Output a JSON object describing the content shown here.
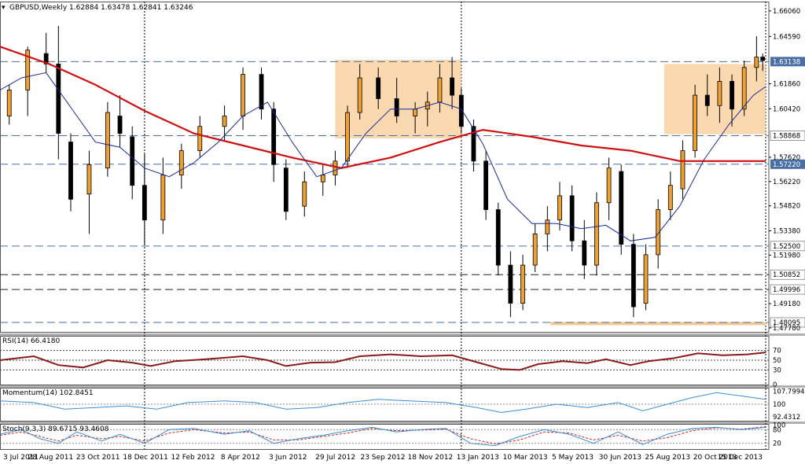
{
  "chart_data": {
    "type": "candlestick",
    "symbol_header": "GBPUSD,Weekly",
    "ohlc_header": "1.62884 1.63478 1.62841 1.63246",
    "y_ticks": [
      "1.66060",
      "1.64590",
      "1.63138",
      "1.61860",
      "1.60420",
      "1.58868",
      "1.57620",
      "1.57220",
      "1.56220",
      "1.54820",
      "1.53380",
      "1.52500",
      "1.51980",
      "1.50852",
      "1.49996",
      "1.49180",
      "1.48095",
      "1.47780"
    ],
    "x_labels": [
      "3 Jul 2011",
      "28 Aug 2011",
      "23 Oct 2011",
      "18 Dec 2011",
      "12 Feb 2012",
      "8 Apr 2012",
      "3 Jun 2012",
      "29 Jul 2012",
      "23 Sep 2012",
      "18 Nov 2012",
      "13 Jan 2013",
      "10 Mar 2013",
      "5 May 2013",
      "30 Jun 2013",
      "25 Aug 2013",
      "20 Oct 2013",
      "15 Dec 2013"
    ],
    "horizontal_levels": [
      {
        "value": 1.63138,
        "label": "1.63138",
        "style": "dashed",
        "highlight": true
      },
      {
        "value": 1.58868,
        "label": "1.58868",
        "style": "dashed",
        "highlight": false
      },
      {
        "value": 1.5722,
        "label": "1.57220",
        "style": "dashed",
        "highlight": true
      },
      {
        "value": 1.525,
        "label": "1.52500",
        "style": "dashed",
        "highlight": false
      },
      {
        "value": 1.50852,
        "label": "1.50852",
        "style": "dashed-black",
        "highlight": false
      },
      {
        "value": 1.49996,
        "label": "1.49996",
        "style": "dashed-black",
        "highlight": false
      },
      {
        "value": 1.48095,
        "label": "1.48095",
        "style": "dashed",
        "highlight": false
      }
    ],
    "ranges": [
      {
        "x_start": 2012.58,
        "x_end": 2012.99,
        "y_low": 1.587,
        "y_high": 1.6325
      },
      {
        "x_start": 2013.65,
        "x_end": 2013.98,
        "y_low": 1.5895,
        "y_high": 1.63
      }
    ],
    "bottom_strip": {
      "x_start": 2013.28,
      "x_end": 2013.98,
      "value": 1.4803
    },
    "ylim": [
      1.4755,
      1.666
    ],
    "xlim": [
      2011.49,
      2013.99
    ],
    "vertical_markers": [
      2011.96,
      2012.99
    ],
    "candles_sampled": [
      [
        2011.52,
        1.6,
        1.618,
        1.595,
        1.615
      ],
      [
        2011.58,
        1.615,
        1.64,
        1.6,
        1.638
      ],
      [
        2011.64,
        1.636,
        1.648,
        1.625,
        1.63
      ],
      [
        2011.68,
        1.63,
        1.652,
        1.575,
        1.59
      ],
      [
        2011.72,
        1.585,
        1.59,
        1.545,
        1.552
      ],
      [
        2011.78,
        1.555,
        1.58,
        1.532,
        1.572
      ],
      [
        2011.84,
        1.57,
        1.608,
        1.565,
        1.602
      ],
      [
        2011.88,
        1.6,
        1.612,
        1.582,
        1.59
      ],
      [
        2011.92,
        1.588,
        1.594,
        1.552,
        1.56
      ],
      [
        2011.96,
        1.56,
        1.578,
        1.526,
        1.54
      ],
      [
        2012.02,
        1.54,
        1.576,
        1.532,
        1.566
      ],
      [
        2012.08,
        1.566,
        1.584,
        1.558,
        1.58
      ],
      [
        2012.14,
        1.58,
        1.6,
        1.576,
        1.594
      ],
      [
        2012.22,
        1.594,
        1.606,
        1.586,
        1.6
      ],
      [
        2012.28,
        1.6,
        1.628,
        1.592,
        1.624
      ],
      [
        2012.34,
        1.624,
        1.628,
        1.598,
        1.604
      ],
      [
        2012.38,
        1.604,
        1.608,
        1.562,
        1.572
      ],
      [
        2012.42,
        1.57,
        1.575,
        1.54,
        1.545
      ],
      [
        2012.48,
        1.548,
        1.568,
        1.542,
        1.562
      ],
      [
        2012.54,
        1.562,
        1.572,
        1.554,
        1.566
      ],
      [
        2012.58,
        1.566,
        1.58,
        1.56,
        1.574
      ],
      [
        2012.62,
        1.574,
        1.606,
        1.57,
        1.602
      ],
      [
        2012.66,
        1.602,
        1.63,
        1.598,
        1.622
      ],
      [
        2012.72,
        1.622,
        1.628,
        1.604,
        1.61
      ],
      [
        2012.78,
        1.61,
        1.622,
        1.596,
        1.6
      ],
      [
        2012.84,
        1.6,
        1.608,
        1.59,
        1.604
      ],
      [
        2012.88,
        1.604,
        1.614,
        1.594,
        1.608
      ],
      [
        2012.92,
        1.608,
        1.63,
        1.602,
        1.622
      ],
      [
        2012.96,
        1.622,
        1.634,
        1.604,
        1.612
      ],
      [
        2012.99,
        1.612,
        1.616,
        1.59,
        1.594
      ],
      [
        2013.03,
        1.594,
        1.598,
        1.568,
        1.574
      ],
      [
        2013.07,
        1.574,
        1.58,
        1.54,
        1.546
      ],
      [
        2013.11,
        1.546,
        1.55,
        1.508,
        1.514
      ],
      [
        2013.15,
        1.514,
        1.522,
        1.484,
        1.492
      ],
      [
        2013.19,
        1.492,
        1.52,
        1.488,
        1.514
      ],
      [
        2013.23,
        1.514,
        1.538,
        1.51,
        1.532
      ],
      [
        2013.27,
        1.532,
        1.548,
        1.522,
        1.54
      ],
      [
        2013.31,
        1.54,
        1.562,
        1.534,
        1.554
      ],
      [
        2013.35,
        1.554,
        1.56,
        1.522,
        1.528
      ],
      [
        2013.39,
        1.528,
        1.54,
        1.506,
        1.514
      ],
      [
        2013.43,
        1.514,
        1.556,
        1.508,
        1.55
      ],
      [
        2013.47,
        1.55,
        1.576,
        1.54,
        1.57
      ],
      [
        2013.51,
        1.568,
        1.572,
        1.52,
        1.526
      ],
      [
        2013.55,
        1.526,
        1.532,
        1.484,
        1.49
      ],
      [
        2013.59,
        1.492,
        1.526,
        1.488,
        1.52
      ],
      [
        2013.63,
        1.52,
        1.552,
        1.512,
        1.546
      ],
      [
        2013.67,
        1.546,
        1.568,
        1.54,
        1.56
      ],
      [
        2013.71,
        1.558,
        1.586,
        1.552,
        1.58
      ],
      [
        2013.75,
        1.58,
        1.618,
        1.576,
        1.612
      ],
      [
        2013.79,
        1.612,
        1.624,
        1.6,
        1.606
      ],
      [
        2013.83,
        1.606,
        1.628,
        1.596,
        1.62
      ],
      [
        2013.87,
        1.62,
        1.624,
        1.594,
        1.604
      ],
      [
        2013.91,
        1.604,
        1.632,
        1.6,
        1.628
      ],
      [
        2013.95,
        1.628,
        1.646,
        1.62,
        1.634
      ],
      [
        2013.97,
        1.634,
        1.636,
        1.626,
        1.632
      ]
    ],
    "ma_short": [
      [
        2011.49,
        1.615
      ],
      [
        2011.56,
        1.622
      ],
      [
        2011.64,
        1.625
      ],
      [
        2011.72,
        1.605
      ],
      [
        2011.8,
        1.585
      ],
      [
        2011.88,
        1.582
      ],
      [
        2011.96,
        1.57
      ],
      [
        2012.04,
        1.565
      ],
      [
        2012.12,
        1.573
      ],
      [
        2012.2,
        1.585
      ],
      [
        2012.28,
        1.6
      ],
      [
        2012.36,
        1.608
      ],
      [
        2012.44,
        1.585
      ],
      [
        2012.52,
        1.565
      ],
      [
        2012.6,
        1.57
      ],
      [
        2012.68,
        1.59
      ],
      [
        2012.76,
        1.604
      ],
      [
        2012.84,
        1.604
      ],
      [
        2012.92,
        1.608
      ],
      [
        2012.99,
        1.604
      ],
      [
        2013.06,
        1.584
      ],
      [
        2013.14,
        1.552
      ],
      [
        2013.22,
        1.538
      ],
      [
        2013.3,
        1.538
      ],
      [
        2013.38,
        1.535
      ],
      [
        2013.46,
        1.537
      ],
      [
        2013.54,
        1.528
      ],
      [
        2013.62,
        1.53
      ],
      [
        2013.7,
        1.548
      ],
      [
        2013.78,
        1.575
      ],
      [
        2013.86,
        1.595
      ],
      [
        2013.94,
        1.612
      ],
      [
        2013.98,
        1.617
      ]
    ],
    "ma_long": [
      [
        2011.49,
        1.64
      ],
      [
        2011.65,
        1.63
      ],
      [
        2011.8,
        1.618
      ],
      [
        2011.96,
        1.603
      ],
      [
        2012.12,
        1.59
      ],
      [
        2012.28,
        1.583
      ],
      [
        2012.44,
        1.576
      ],
      [
        2012.6,
        1.57
      ],
      [
        2012.76,
        1.576
      ],
      [
        2012.92,
        1.585
      ],
      [
        2013.06,
        1.592
      ],
      [
        2013.22,
        1.588
      ],
      [
        2013.38,
        1.583
      ],
      [
        2013.54,
        1.58
      ],
      [
        2013.7,
        1.574
      ],
      [
        2013.86,
        1.574
      ],
      [
        2013.98,
        1.574
      ]
    ],
    "rsi_header": "RSI(14) 66.4180",
    "rsi_ticks": [
      "70",
      "50",
      "30",
      "0"
    ],
    "rsi": [
      [
        2011.49,
        50
      ],
      [
        2011.6,
        58
      ],
      [
        2011.68,
        40
      ],
      [
        2011.76,
        35
      ],
      [
        2011.84,
        50
      ],
      [
        2011.92,
        45
      ],
      [
        2011.98,
        38
      ],
      [
        2012.06,
        48
      ],
      [
        2012.16,
        52
      ],
      [
        2012.28,
        58
      ],
      [
        2012.36,
        50
      ],
      [
        2012.42,
        38
      ],
      [
        2012.5,
        45
      ],
      [
        2012.58,
        46
      ],
      [
        2012.66,
        58
      ],
      [
        2012.76,
        62
      ],
      [
        2012.86,
        58
      ],
      [
        2012.96,
        60
      ],
      [
        2013.04,
        46
      ],
      [
        2013.12,
        32
      ],
      [
        2013.18,
        30
      ],
      [
        2013.24,
        42
      ],
      [
        2013.32,
        48
      ],
      [
        2013.4,
        44
      ],
      [
        2013.46,
        52
      ],
      [
        2013.54,
        40
      ],
      [
        2013.6,
        48
      ],
      [
        2013.68,
        54
      ],
      [
        2013.76,
        64
      ],
      [
        2013.84,
        60
      ],
      [
        2013.92,
        62
      ],
      [
        2013.98,
        66
      ]
    ],
    "momentum_header": "Momentum(14) 102.8451",
    "momentum_ticks": [
      "107.7994",
      "100",
      "92.4312"
    ],
    "momentum": [
      [
        2011.49,
        102
      ],
      [
        2011.6,
        101
      ],
      [
        2011.7,
        97
      ],
      [
        2011.8,
        98
      ],
      [
        2011.9,
        99
      ],
      [
        2012.0,
        97
      ],
      [
        2012.1,
        101
      ],
      [
        2012.22,
        102
      ],
      [
        2012.32,
        101
      ],
      [
        2012.42,
        97
      ],
      [
        2012.52,
        98
      ],
      [
        2012.62,
        101
      ],
      [
        2012.72,
        103
      ],
      [
        2012.82,
        102
      ],
      [
        2012.94,
        101
      ],
      [
        2013.04,
        98
      ],
      [
        2013.12,
        95
      ],
      [
        2013.2,
        97
      ],
      [
        2013.3,
        100
      ],
      [
        2013.4,
        98
      ],
      [
        2013.5,
        101
      ],
      [
        2013.58,
        96
      ],
      [
        2013.66,
        100
      ],
      [
        2013.74,
        104
      ],
      [
        2013.82,
        107
      ],
      [
        2013.9,
        105
      ],
      [
        2013.98,
        103
      ]
    ],
    "stoch_header": "Stoch(9,3,3) 89.6715 93.4608",
    "stoch_ticks": [
      "100",
      "80",
      "20"
    ],
    "stoch_main": [
      [
        2011.49,
        60
      ],
      [
        2011.56,
        80
      ],
      [
        2011.62,
        40
      ],
      [
        2011.68,
        20
      ],
      [
        2011.74,
        70
      ],
      [
        2011.82,
        30
      ],
      [
        2011.88,
        60
      ],
      [
        2011.96,
        20
      ],
      [
        2012.04,
        80
      ],
      [
        2012.12,
        85
      ],
      [
        2012.22,
        60
      ],
      [
        2012.3,
        75
      ],
      [
        2012.38,
        20
      ],
      [
        2012.46,
        40
      ],
      [
        2012.54,
        55
      ],
      [
        2012.62,
        75
      ],
      [
        2012.7,
        90
      ],
      [
        2012.78,
        70
      ],
      [
        2012.86,
        80
      ],
      [
        2012.94,
        85
      ],
      [
        2013.02,
        20
      ],
      [
        2013.1,
        10
      ],
      [
        2013.18,
        50
      ],
      [
        2013.26,
        80
      ],
      [
        2013.34,
        60
      ],
      [
        2013.42,
        20
      ],
      [
        2013.5,
        70
      ],
      [
        2013.58,
        15
      ],
      [
        2013.66,
        60
      ],
      [
        2013.74,
        85
      ],
      [
        2013.82,
        90
      ],
      [
        2013.9,
        80
      ],
      [
        2013.98,
        90
      ]
    ],
    "stoch_signal": [
      [
        2011.49,
        55
      ],
      [
        2011.56,
        70
      ],
      [
        2011.62,
        50
      ],
      [
        2011.68,
        30
      ],
      [
        2011.74,
        55
      ],
      [
        2011.82,
        40
      ],
      [
        2011.88,
        50
      ],
      [
        2011.96,
        30
      ],
      [
        2012.04,
        65
      ],
      [
        2012.12,
        80
      ],
      [
        2012.22,
        65
      ],
      [
        2012.3,
        70
      ],
      [
        2012.38,
        35
      ],
      [
        2012.46,
        35
      ],
      [
        2012.54,
        50
      ],
      [
        2012.62,
        65
      ],
      [
        2012.7,
        85
      ],
      [
        2012.78,
        75
      ],
      [
        2012.86,
        78
      ],
      [
        2012.94,
        82
      ],
      [
        2013.02,
        40
      ],
      [
        2013.1,
        18
      ],
      [
        2013.18,
        35
      ],
      [
        2013.26,
        70
      ],
      [
        2013.34,
        65
      ],
      [
        2013.42,
        35
      ],
      [
        2013.5,
        55
      ],
      [
        2013.58,
        30
      ],
      [
        2013.66,
        45
      ],
      [
        2013.74,
        75
      ],
      [
        2013.82,
        88
      ],
      [
        2013.9,
        82
      ],
      [
        2013.98,
        93
      ]
    ]
  }
}
